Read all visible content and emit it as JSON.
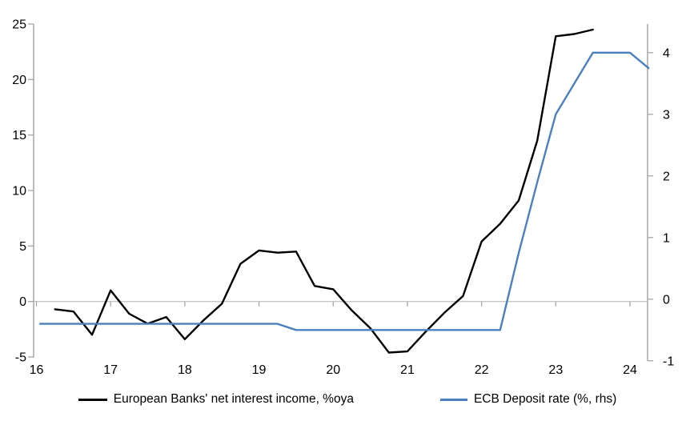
{
  "chart_data": {
    "type": "line",
    "title": "",
    "x_axis": {
      "tick_labels": [
        "16",
        "17",
        "18",
        "19",
        "20",
        "21",
        "22",
        "23",
        "24"
      ],
      "tick_values": [
        16,
        17,
        18,
        19,
        20,
        21,
        22,
        23,
        24
      ],
      "range": [
        16,
        24.3
      ],
      "unit": "year"
    },
    "y_axis_left": {
      "tick_labels": [
        "-5",
        "0",
        "5",
        "10",
        "15",
        "20",
        "25"
      ],
      "tick_values": [
        -5,
        0,
        5,
        10,
        15,
        20,
        25
      ],
      "range": [
        -5.1,
        25
      ],
      "applies_to": "European Banks' net interest income, %oya"
    },
    "y_axis_right": {
      "tick_labels": [
        "-1",
        "0",
        "1",
        "2",
        "3",
        "4"
      ],
      "tick_values": [
        -1,
        0,
        1,
        2,
        3,
        4
      ],
      "range": [
        -1.05,
        4.5
      ],
      "applies_to": "ECB Deposit rate (%, rhs)"
    },
    "gridlines": "horizontal-zero-line-only",
    "series": [
      {
        "name": "European Banks' net interest income, %oya",
        "color": "#000000",
        "axis": "left",
        "points": [
          [
            16.25,
            -0.7
          ],
          [
            16.5,
            -0.9
          ],
          [
            16.75,
            -3.0
          ],
          [
            17.0,
            1.0
          ],
          [
            17.25,
            -1.1
          ],
          [
            17.5,
            -2.0
          ],
          [
            17.75,
            -1.4
          ],
          [
            18.0,
            -3.4
          ],
          [
            18.25,
            -1.7
          ],
          [
            18.5,
            -0.2
          ],
          [
            18.75,
            3.4
          ],
          [
            19.0,
            4.6
          ],
          [
            19.25,
            4.4
          ],
          [
            19.5,
            4.5
          ],
          [
            19.75,
            1.4
          ],
          [
            20.0,
            1.1
          ],
          [
            20.25,
            -0.8
          ],
          [
            20.5,
            -2.4
          ],
          [
            20.75,
            -4.6
          ],
          [
            21.0,
            -4.5
          ],
          [
            21.25,
            -2.7
          ],
          [
            21.5,
            -1.0
          ],
          [
            21.75,
            0.5
          ],
          [
            22.0,
            5.4
          ],
          [
            22.25,
            7.0
          ],
          [
            22.5,
            9.1
          ],
          [
            22.75,
            14.5
          ],
          [
            23.0,
            23.9
          ],
          [
            23.25,
            24.1
          ],
          [
            23.5,
            24.5
          ]
        ]
      },
      {
        "name": "ECB Deposit rate (%, rhs)",
        "color": "#4a80bf",
        "axis": "right",
        "points": [
          [
            16.05,
            -0.4
          ],
          [
            16.25,
            -0.4
          ],
          [
            16.5,
            -0.4
          ],
          [
            16.75,
            -0.4
          ],
          [
            17.0,
            -0.4
          ],
          [
            17.25,
            -0.4
          ],
          [
            17.5,
            -0.4
          ],
          [
            17.75,
            -0.4
          ],
          [
            18.0,
            -0.4
          ],
          [
            18.25,
            -0.4
          ],
          [
            18.5,
            -0.4
          ],
          [
            18.75,
            -0.4
          ],
          [
            19.0,
            -0.4
          ],
          [
            19.25,
            -0.4
          ],
          [
            19.5,
            -0.5
          ],
          [
            19.75,
            -0.5
          ],
          [
            20.0,
            -0.5
          ],
          [
            20.25,
            -0.5
          ],
          [
            20.5,
            -0.5
          ],
          [
            20.75,
            -0.5
          ],
          [
            21.0,
            -0.5
          ],
          [
            21.25,
            -0.5
          ],
          [
            21.5,
            -0.5
          ],
          [
            21.75,
            -0.5
          ],
          [
            22.0,
            -0.5
          ],
          [
            22.25,
            -0.5
          ],
          [
            22.5,
            0.75
          ],
          [
            22.75,
            1.9
          ],
          [
            23.0,
            3.0
          ],
          [
            23.25,
            3.5
          ],
          [
            23.5,
            4.0
          ],
          [
            23.75,
            4.0
          ],
          [
            24.0,
            4.0
          ],
          [
            24.25,
            3.75
          ]
        ]
      }
    ],
    "legend": {
      "position": "bottom-center",
      "entries": [
        {
          "label": "European Banks' net interest income, %oya",
          "color": "#000000"
        },
        {
          "label": "ECB Deposit rate (%, rhs)",
          "color": "#4a80bf"
        }
      ]
    }
  },
  "colors": {
    "background": "#ffffff",
    "axis_line": "#a6a6a6",
    "zero_gridline": "#c8c8c8",
    "tick_text": "#000000",
    "black_series": "#000000",
    "blue_series": "#4a80bf"
  }
}
